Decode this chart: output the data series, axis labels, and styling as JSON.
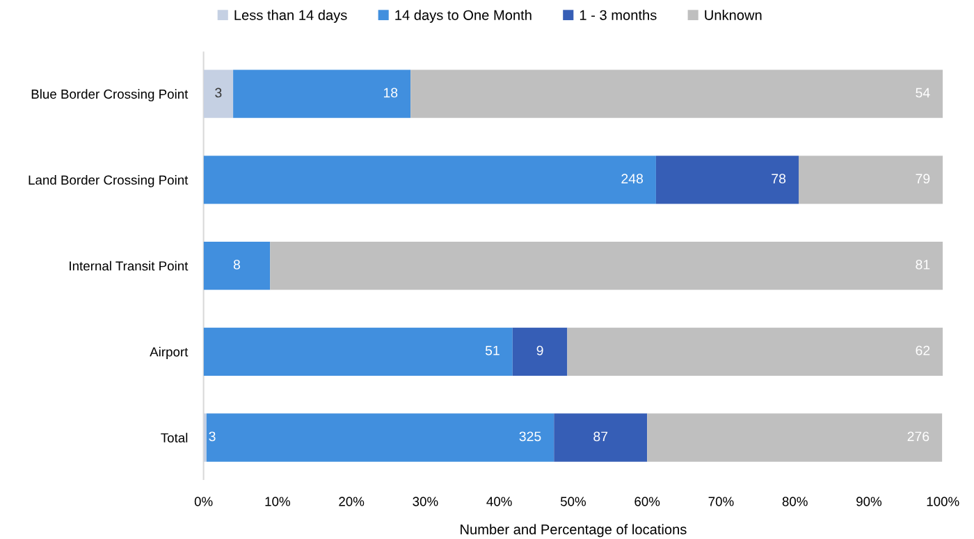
{
  "chart_data": {
    "type": "bar",
    "orientation": "horizontal",
    "stacked": true,
    "xlabel": "Number and Percentage of locations",
    "categories": [
      "Blue Border Crossing Point",
      "Land Border Crossing Point",
      "Internal Transit Point",
      "Airport",
      "Total"
    ],
    "series": [
      {
        "name": "Less than 14 days",
        "color": "#c5d0e3",
        "values": [
          4.0,
          null,
          null,
          null,
          0.4
        ]
      },
      {
        "name": "14 days to One Month",
        "color": "#418fde",
        "values": [
          24.0,
          61.2,
          9.0,
          41.8,
          47.0
        ]
      },
      {
        "name": "1 - 3 months",
        "color": "#365eb6",
        "values": [
          null,
          19.3,
          null,
          7.4,
          12.6
        ]
      },
      {
        "name": "Unknown",
        "color": "#bfbfbf",
        "values": [
          72.0,
          19.5,
          91.0,
          50.8,
          39.9
        ]
      }
    ],
    "annotations": [
      {
        "text": "3",
        "x": 4.0,
        "y": "Blue Border Crossing Point"
      },
      {
        "text": "18",
        "x": 28.0,
        "y": "Blue Border Crossing Point"
      },
      {
        "text": "54",
        "x": 100.0,
        "y": "Blue Border Crossing Point"
      },
      {
        "text": "248",
        "x": 61.2,
        "y": "Land Border Crossing Point"
      },
      {
        "text": "78",
        "x": 80.5,
        "y": "Land Border Crossing Point"
      },
      {
        "text": "79",
        "x": 100.0,
        "y": "Land Border Crossing Point"
      },
      {
        "text": "8",
        "x": 9.0,
        "y": "Internal Transit Point"
      },
      {
        "text": "81",
        "x": 100.0,
        "y": "Internal Transit Point"
      },
      {
        "text": "51",
        "x": 41.8,
        "y": "Airport"
      },
      {
        "text": "9",
        "x": 49.2,
        "y": "Airport"
      },
      {
        "text": "62",
        "x": 100.0,
        "y": "Airport"
      },
      {
        "text": "3",
        "x": 0.4,
        "y": "Total"
      },
      {
        "text": "325",
        "x": 47.4,
        "y": "Total"
      },
      {
        "text": "87",
        "x": 60.0,
        "y": "Total"
      },
      {
        "text": "276",
        "x": 99.9,
        "y": "Total"
      }
    ],
    "xlim": [
      0,
      100
    ],
    "xticks": [
      {
        "value": 0,
        "label": "0%"
      },
      {
        "value": 10,
        "label": "10%"
      },
      {
        "value": 20,
        "label": "20%"
      },
      {
        "value": 30,
        "label": "30%"
      },
      {
        "value": 40,
        "label": "40%"
      },
      {
        "value": 50,
        "label": "50%"
      },
      {
        "value": 60,
        "label": "60%"
      },
      {
        "value": 70,
        "label": "70%"
      },
      {
        "value": 80,
        "label": "80%"
      },
      {
        "value": 90,
        "label": "90%"
      },
      {
        "value": 100,
        "label": "100%"
      }
    ],
    "legend": "top"
  }
}
